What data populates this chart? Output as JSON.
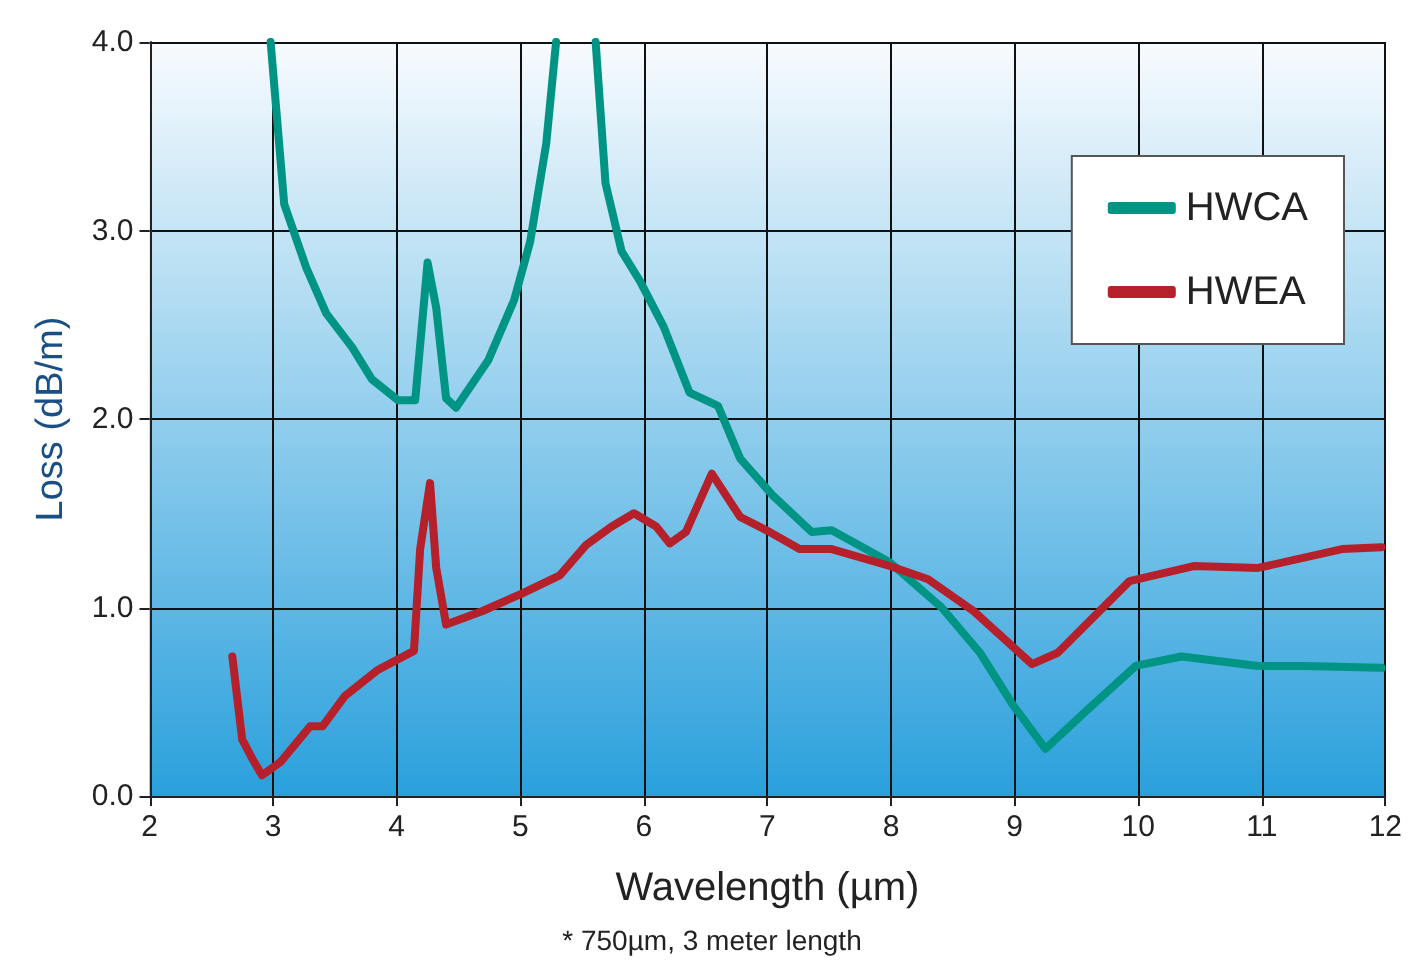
{
  "chart_data": {
    "type": "line",
    "xlabel": "Wavelength (µm)",
    "ylabel": "Loss (dB/m)",
    "annotations": [
      "* 750µm, 3 meter length"
    ],
    "xlim": [
      2,
      12
    ],
    "xticks": [
      2,
      3,
      4,
      5,
      6,
      7,
      8,
      9,
      10,
      11,
      12
    ],
    "ylim": [
      0,
      4
    ],
    "yticks": [
      {
        "value": 0,
        "label": "0.0"
      },
      {
        "value": 1,
        "label": "1.0"
      },
      {
        "value": 2,
        "label": "2.0"
      },
      {
        "value": 3,
        "label": "3.0"
      },
      {
        "value": 4,
        "label": "4.0"
      }
    ],
    "grid": true,
    "legend": "top right",
    "marker": "none",
    "line_style": "solid",
    "series": [
      {
        "name": "HWCA",
        "color": "#009484",
        "x": [
          2.98,
          3.09,
          3.27,
          3.43,
          3.64,
          3.8,
          4.01,
          4.15,
          4.25,
          4.32,
          4.4,
          4.48,
          4.74,
          4.95,
          5.08,
          5.21,
          5.29,
          5.45,
          5.61,
          5.69,
          5.82,
          5.97,
          6.16,
          6.37,
          6.6,
          6.78,
          7.05,
          7.36,
          7.52,
          7.99,
          8.41,
          8.72,
          8.99,
          9.25,
          9.56,
          9.98,
          10.35,
          10.97,
          11.34,
          11.97
        ],
        "values": [
          4.0,
          3.14,
          2.8,
          2.56,
          2.38,
          2.21,
          2.1,
          2.1,
          2.83,
          2.59,
          2.11,
          2.06,
          2.31,
          2.63,
          2.94,
          3.46,
          4.0,
          null,
          4.0,
          3.25,
          2.89,
          2.73,
          2.49,
          2.14,
          2.07,
          1.79,
          1.59,
          1.4,
          1.41,
          1.24,
          1.0,
          0.76,
          0.48,
          0.25,
          0.44,
          0.69,
          0.74,
          0.69,
          0.69,
          0.68
        ]
      },
      {
        "name": "HWEA",
        "color": "#b5202a",
        "x": [
          2.67,
          2.75,
          2.83,
          2.91,
          3.06,
          3.3,
          3.4,
          3.58,
          3.85,
          4.14,
          4.19,
          4.27,
          4.32,
          4.4,
          4.69,
          5.0,
          5.32,
          5.53,
          5.74,
          5.92,
          6.1,
          6.21,
          6.34,
          6.55,
          6.78,
          7.02,
          7.26,
          7.52,
          7.99,
          8.3,
          8.67,
          9.14,
          9.35,
          9.93,
          10.45,
          10.97,
          11.65,
          11.97
        ],
        "values": [
          0.74,
          0.3,
          0.2,
          0.11,
          0.18,
          0.37,
          0.37,
          0.53,
          0.67,
          0.77,
          1.31,
          1.66,
          1.21,
          0.91,
          0.98,
          1.07,
          1.17,
          1.33,
          1.43,
          1.5,
          1.43,
          1.34,
          1.4,
          1.71,
          1.48,
          1.4,
          1.31,
          1.31,
          1.22,
          1.15,
          0.98,
          0.7,
          0.76,
          1.14,
          1.22,
          1.21,
          1.31,
          1.32
        ]
      }
    ]
  }
}
